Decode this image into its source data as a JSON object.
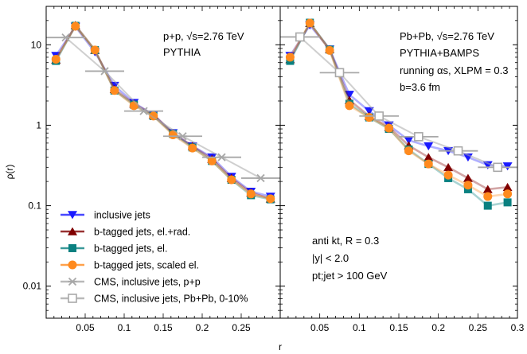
{
  "colors": {
    "inclusive": "#1a1aff",
    "eldrad": "#800000",
    "el": "#0a8080",
    "scaled": "#ff8a1e",
    "cms_pp": "#a8a8a8",
    "cms_pbpb": "#a8a8a8"
  },
  "legend": [
    {
      "key": "inclusive",
      "label": "inclusive jets",
      "marker": "triangle-down"
    },
    {
      "key": "eldrad",
      "label": "b-tagged jets, el.+rad.",
      "marker": "triangle-up"
    },
    {
      "key": "el",
      "label": "b-tagged jets, el.",
      "marker": "square"
    },
    {
      "key": "scaled",
      "label": "b-tagged jets, scaled el.",
      "marker": "circle"
    },
    {
      "key": "cms_pp",
      "label": "CMS, inclusive jets, p+p",
      "marker": "star"
    },
    {
      "key": "cms_pbpb",
      "label": "CMS, inclusive jets, Pb+Pb, 0-10%",
      "marker": "open-square"
    }
  ],
  "chart_data": [
    {
      "type": "line",
      "panel": "left",
      "ylabel": "ρ(r)",
      "xlabel": "",
      "xlim": [
        0,
        0.3
      ],
      "ylim": [
        0.004,
        30
      ],
      "yscale": "log",
      "xticks": [
        0.05,
        0.1,
        0.15,
        0.2,
        0.25
      ],
      "yticks": [
        {
          "v": 0.01,
          "label": "0.01"
        },
        {
          "v": 0.1,
          "label": "0.1"
        },
        {
          "v": 1,
          "label": "1"
        },
        {
          "v": 10,
          "label": "10"
        }
      ],
      "annotations": [
        "p+p, √s=2.76 TeV",
        "PYTHIA"
      ],
      "x": [
        0.0125,
        0.0375,
        0.0625,
        0.0875,
        0.1125,
        0.1375,
        0.1625,
        0.1875,
        0.2125,
        0.2375,
        0.2625,
        0.2875
      ],
      "series": [
        {
          "key": "inclusive",
          "name": "inclusive jets",
          "values": [
            7.3,
            16.8,
            8.1,
            3.1,
            1.9,
            1.35,
            0.8,
            0.55,
            0.4,
            0.23,
            0.15,
            0.13
          ]
        },
        {
          "key": "eldrad",
          "name": "b-tagged jets, el.+rad.",
          "values": [
            6.5,
            17.5,
            8.6,
            2.8,
            1.85,
            1.35,
            0.8,
            0.55,
            0.38,
            0.22,
            0.145,
            0.122
          ]
        },
        {
          "key": "el",
          "name": "b-tagged jets, el.",
          "values": [
            6.3,
            17.2,
            8.6,
            2.7,
            1.8,
            1.3,
            0.78,
            0.53,
            0.36,
            0.21,
            0.135,
            0.12
          ]
        },
        {
          "key": "scaled",
          "name": "b-tagged jets, scaled el.",
          "values": [
            6.6,
            17.0,
            8.6,
            2.7,
            1.75,
            1.3,
            0.76,
            0.52,
            0.36,
            0.21,
            0.14,
            0.122
          ]
        },
        {
          "key": "cms_pp",
          "name": "CMS, inclusive jets, p+p",
          "x": [
            0.025,
            0.075,
            0.125,
            0.175,
            0.225,
            0.275
          ],
          "values": [
            12.3,
            4.7,
            1.5,
            0.73,
            0.4,
            0.22
          ],
          "xerr": 0.025
        }
      ]
    },
    {
      "type": "line",
      "panel": "right",
      "xlabel": "r",
      "xlim": [
        0,
        0.3
      ],
      "ylim": [
        0.004,
        30
      ],
      "yscale": "log",
      "xticks": [
        0.05,
        0.1,
        0.15,
        0.2,
        0.25,
        0.3
      ],
      "annotations": [
        "Pb+Pb, √s=2.76 TeV",
        "PYTHIA+BAMPS",
        "running αs, XLPM = 0.3",
        "b=3.6 fm"
      ],
      "cuts": [
        "anti kt, R = 0.3",
        "|y| < 2.0",
        "pt;jet > 100 GeV"
      ],
      "x": [
        0.0125,
        0.0375,
        0.0625,
        0.0875,
        0.1125,
        0.1375,
        0.1625,
        0.1875,
        0.2125,
        0.2375,
        0.2625,
        0.2875
      ],
      "series": [
        {
          "key": "inclusive",
          "name": "inclusive jets",
          "values": [
            7.3,
            17.5,
            8.8,
            2.4,
            1.5,
            1.0,
            0.65,
            0.55,
            0.48,
            0.4,
            0.32,
            0.31
          ]
        },
        {
          "key": "eldrad",
          "name": "b-tagged jets, el.+rad.",
          "values": [
            6.6,
            18.5,
            8.8,
            2.05,
            1.3,
            0.95,
            0.56,
            0.4,
            0.3,
            0.22,
            0.16,
            0.17
          ]
        },
        {
          "key": "el",
          "name": "b-tagged jets, el.",
          "values": [
            6.3,
            18.8,
            8.7,
            1.85,
            1.25,
            0.9,
            0.5,
            0.33,
            0.22,
            0.16,
            0.1,
            0.11
          ]
        },
        {
          "key": "scaled",
          "name": "b-tagged jets, scaled el.",
          "values": [
            7.0,
            18.6,
            8.5,
            1.75,
            1.25,
            0.92,
            0.48,
            0.33,
            0.24,
            0.18,
            0.13,
            0.14
          ]
        },
        {
          "key": "cms_pbpb",
          "name": "CMS, inclusive jets, Pb+Pb, 0-10%",
          "x": [
            0.025,
            0.075,
            0.125,
            0.175,
            0.225,
            0.275
          ],
          "values": [
            12.5,
            4.5,
            1.3,
            0.72,
            0.48,
            0.3
          ],
          "xerr": 0.025
        }
      ]
    }
  ]
}
